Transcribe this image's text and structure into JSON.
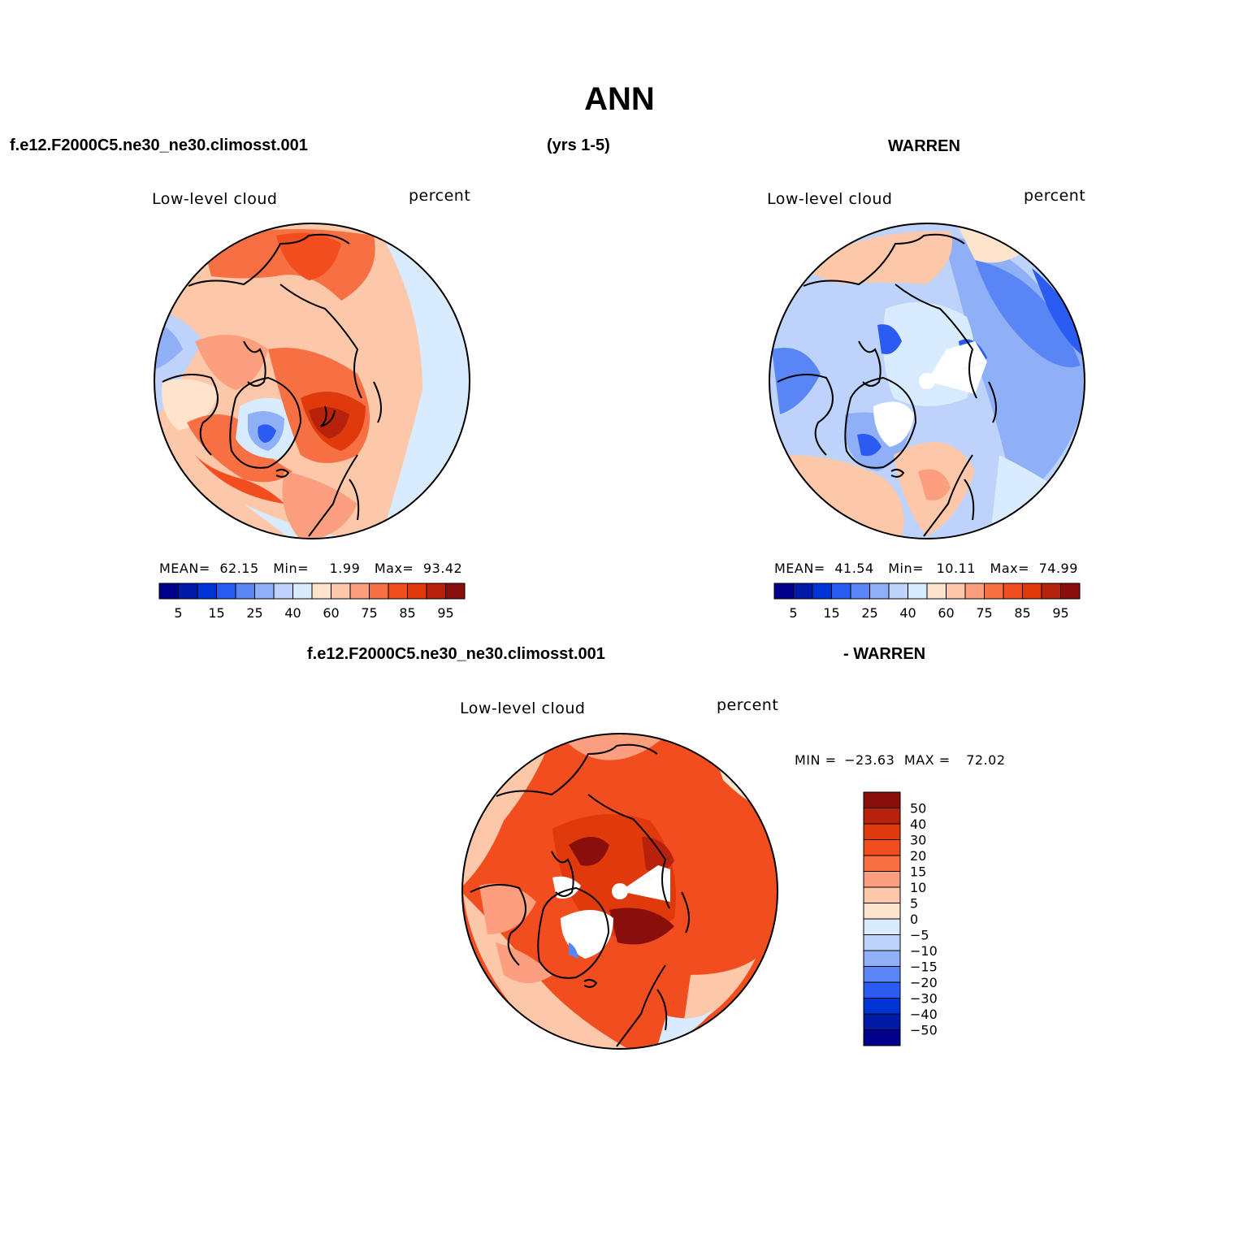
{
  "title": "ANN",
  "header": {
    "left": "f.e12.F2000C5.ne30_ne30.climosst.001",
    "center": "(yrs 1-5)",
    "right": "WARREN"
  },
  "diff_header": {
    "left": "f.e12.F2000C5.ne30_ne30.climosst.001",
    "right": "- WARREN"
  },
  "colors": {
    "absolute_scale": [
      "#00008c",
      "#001aa8",
      "#0033d6",
      "#2a5cf2",
      "#5a86f5",
      "#8fb0f7",
      "#bdd3fb",
      "#d9ebfe",
      "#fee4cd",
      "#fdc7aa",
      "#fb9f7e",
      "#f67044",
      "#f24d1f",
      "#e03a0c",
      "#b8220c",
      "#8a0e0a"
    ],
    "diff_scale": [
      "#00008c",
      "#001aa8",
      "#0033d6",
      "#2a5cf2",
      "#5a86f5",
      "#8fb0f7",
      "#bdd3fb",
      "#d9ebfe",
      "#fee4cd",
      "#fdc7aa",
      "#fb9f7e",
      "#f67044",
      "#f24d1f",
      "#e03a0c",
      "#b8220c",
      "#8a0e0a"
    ],
    "land_outline": "#000000",
    "missing": "#ffffff"
  },
  "chart_data": [
    {
      "type": "heatmap",
      "projection": "north-polar-stereographic",
      "label": "Low-level cloud",
      "units": "percent",
      "stats": {
        "mean_label": "MEAN=",
        "mean": "62.15",
        "min_label": "Min=",
        "min": "1.99",
        "max_label": "Max=",
        "max": "93.42"
      },
      "colorbar": {
        "orientation": "horizontal",
        "tick_labels": [
          "5",
          "15",
          "25",
          "40",
          "60",
          "75",
          "85",
          "95"
        ]
      }
    },
    {
      "type": "heatmap",
      "projection": "north-polar-stereographic",
      "label": "Low-level cloud",
      "units": "percent",
      "stats": {
        "mean_label": "MEAN=",
        "mean": "41.54",
        "min_label": "Min=",
        "min": "10.11",
        "max_label": "Max=",
        "max": "74.99"
      },
      "colorbar": {
        "orientation": "horizontal",
        "tick_labels": [
          "5",
          "15",
          "25",
          "40",
          "60",
          "75",
          "85",
          "95"
        ]
      }
    },
    {
      "type": "heatmap",
      "projection": "north-polar-stereographic",
      "label": "Low-level cloud",
      "units": "percent",
      "stats": {
        "min_label": "MIN =",
        "min": "-23.63",
        "max_label": "MAX =",
        "max": "72.02"
      },
      "colorbar": {
        "orientation": "vertical",
        "tick_labels": [
          "50",
          "40",
          "30",
          "20",
          "15",
          "10",
          "5",
          "0",
          "-5",
          "-10",
          "-15",
          "-20",
          "-30",
          "-40",
          "-50"
        ]
      }
    }
  ]
}
